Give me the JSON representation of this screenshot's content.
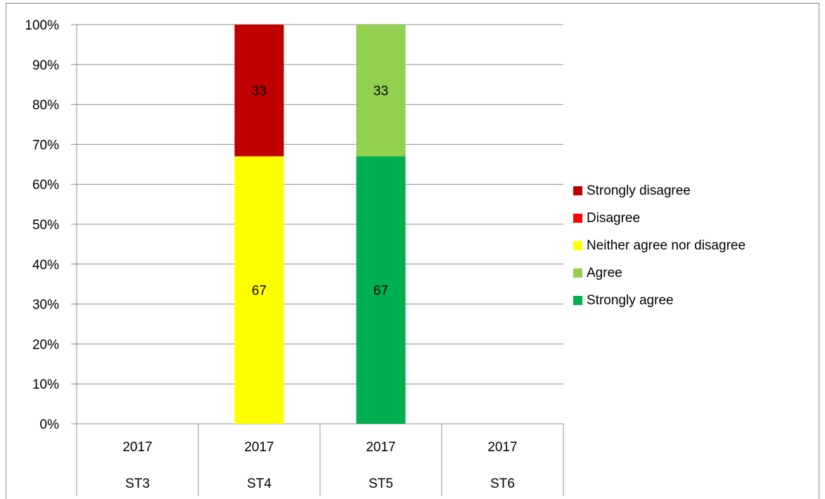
{
  "chart_data": {
    "type": "bar",
    "stacked": true,
    "percent": true,
    "categories": [
      {
        "year": "2017",
        "group": "ST3"
      },
      {
        "year": "2017",
        "group": "ST4"
      },
      {
        "year": "2017",
        "group": "ST5"
      },
      {
        "year": "2017",
        "group": "ST6"
      }
    ],
    "series": [
      {
        "name": "Strongly agree",
        "color": "#00B050",
        "values": [
          0,
          0,
          67,
          0
        ]
      },
      {
        "name": "Agree",
        "color": "#92D050",
        "values": [
          0,
          0,
          33,
          0
        ]
      },
      {
        "name": "Neither agree nor disagree",
        "color": "#FFFF00",
        "values": [
          0,
          67,
          0,
          0
        ]
      },
      {
        "name": "Disagree",
        "color": "#FF0000",
        "values": [
          0,
          0,
          0,
          0
        ]
      },
      {
        "name": "Strongly disagree",
        "color": "#C00000",
        "values": [
          0,
          33,
          0,
          0
        ]
      }
    ],
    "legend_order": [
      "Strongly disagree",
      "Disagree",
      "Neither agree nor disagree",
      "Agree",
      "Strongly agree"
    ],
    "y_ticks": [
      "0%",
      "10%",
      "20%",
      "30%",
      "40%",
      "50%",
      "60%",
      "70%",
      "80%",
      "90%",
      "100%"
    ],
    "ylim": [
      0,
      100
    ],
    "grid": true,
    "legend_position": "right",
    "title": "",
    "xlabel": "",
    "ylabel": ""
  }
}
